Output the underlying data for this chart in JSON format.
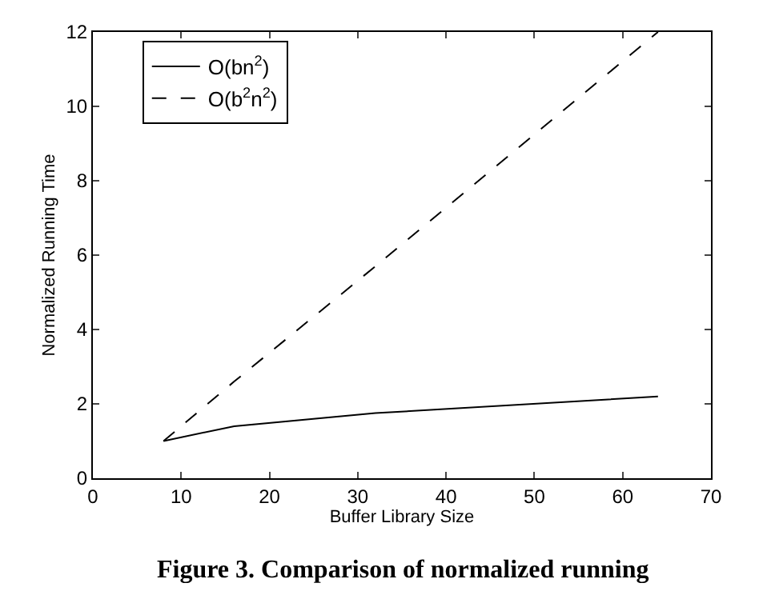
{
  "chart_data": {
    "type": "line",
    "xlabel": "Buffer Library Size",
    "ylabel": "Normalized Running Time",
    "series": [
      {
        "name": "O(bn$^{2}$)",
        "color": "#000000",
        "line_style": "solid",
        "x": [
          8,
          16,
          32,
          64
        ],
        "values": [
          1,
          1.4,
          1.75,
          2.2
        ]
      },
      {
        "name": "O(b$^{2}$n$^{2}$)",
        "color": "#000000",
        "line_style": "dashed",
        "x": [
          8,
          16,
          32,
          64
        ],
        "values": [
          1,
          2.6,
          5.7,
          12
        ]
      }
    ],
    "xlim": [
      0,
      70
    ],
    "xticks": [
      0,
      10,
      20,
      30,
      40,
      50,
      60,
      70
    ],
    "ylim": [
      0,
      12
    ],
    "yticks": [
      0,
      2,
      4,
      6,
      8,
      10,
      12
    ],
    "legend": "top left",
    "marker": "none",
    "annotations": [
      "Figure 3. Comparison of normalized running"
    ]
  }
}
